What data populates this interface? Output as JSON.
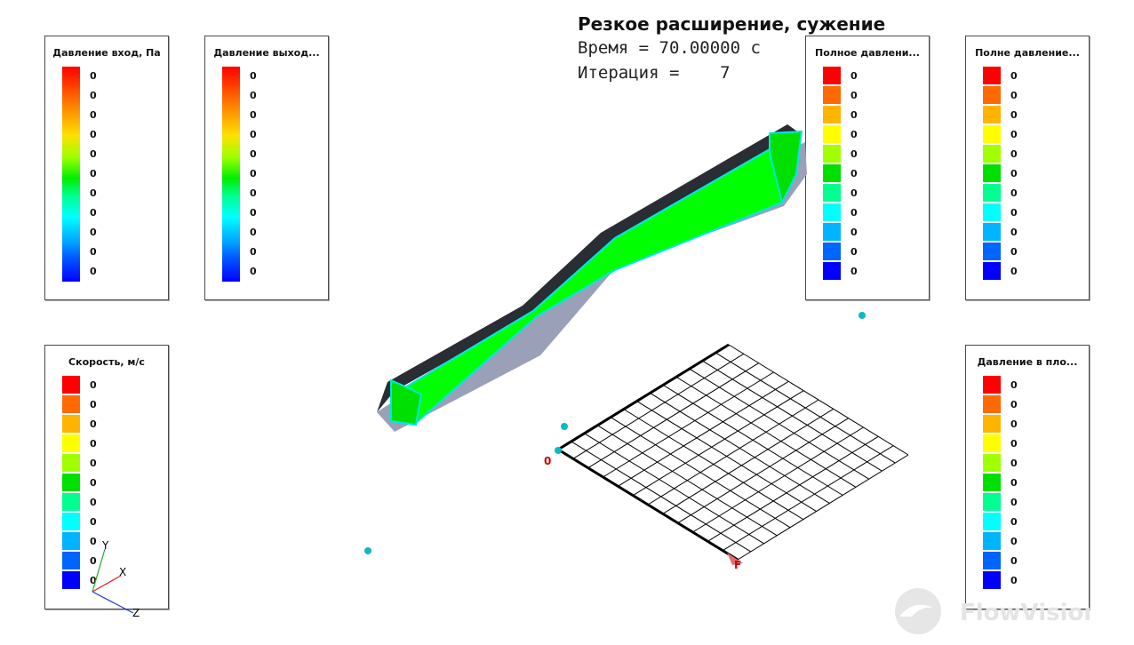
{
  "header": {
    "title": "Резкое расширение, сужение",
    "time_line": "Время = 70.00000 с",
    "iteration_line": "Итерация =    7"
  },
  "legends": [
    {
      "title": "Давление вход, Па",
      "style": "gradient",
      "labels": [
        "0",
        "0",
        "0",
        "0",
        "0",
        "0",
        "0",
        "0",
        "0",
        "0",
        "0"
      ]
    },
    {
      "title": "Давление выход...",
      "style": "gradient",
      "labels": [
        "0",
        "0",
        "0",
        "0",
        "0",
        "0",
        "0",
        "0",
        "0",
        "0",
        "0"
      ]
    },
    {
      "title": "Полное давлени...",
      "style": "discrete",
      "labels": [
        "0",
        "0",
        "0",
        "0",
        "0",
        "0",
        "0",
        "0",
        "0",
        "0",
        "0"
      ]
    },
    {
      "title": "Полне давление...",
      "style": "discrete",
      "labels": [
        "0",
        "0",
        "0",
        "0",
        "0",
        "0",
        "0",
        "0",
        "0",
        "0",
        "0"
      ]
    },
    {
      "title": "Скорость, м/с",
      "style": "discrete",
      "labels": [
        "0",
        "0",
        "0",
        "0",
        "0",
        "0",
        "0",
        "0",
        "0",
        "0",
        "0"
      ]
    },
    {
      "title": "Давление в пло...",
      "style": "discrete",
      "labels": [
        "0",
        "0",
        "0",
        "0",
        "0",
        "0",
        "0",
        "0",
        "0",
        "0",
        "0"
      ]
    }
  ],
  "discrete_colors": [
    "#ff0000",
    "#ff6a00",
    "#ffb400",
    "#ffff00",
    "#a0ff00",
    "#00e000",
    "#00ff90",
    "#00ffff",
    "#00b4ff",
    "#0064ff",
    "#0000ff"
  ],
  "axes": {
    "x": "X",
    "y": "Y",
    "z": "Z"
  },
  "grid_labels": {
    "origin": "0",
    "corner": "F"
  },
  "logo": {
    "text": "FlowVision"
  },
  "colors": {
    "flow": "#00ff00",
    "edge": "#00e6e6",
    "shadow": "#9aa0b8",
    "top": "#2a2d33"
  }
}
